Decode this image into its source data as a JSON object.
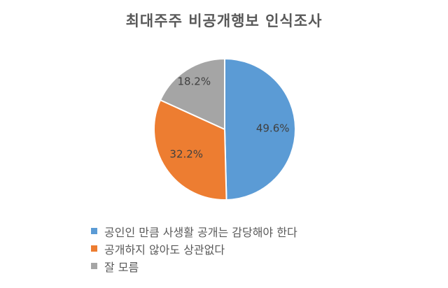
{
  "chart_data": {
    "type": "pie",
    "title": "최대주주 비공개행보 인식조사",
    "categories": [
      "공인인 만큼 사생활 공개는 감당해야 한다",
      "공개하지 않아도 상관없다",
      "잘 모름"
    ],
    "values": [
      49.6,
      32.2,
      18.2
    ],
    "data_labels": [
      "49.6%",
      "32.2%",
      "18.2%"
    ],
    "colors": [
      "#5b9bd5",
      "#ed7d31",
      "#a5a5a5"
    ],
    "legend_position": "bottom",
    "start_angle": "12 o'clock",
    "direction": "clockwise"
  }
}
